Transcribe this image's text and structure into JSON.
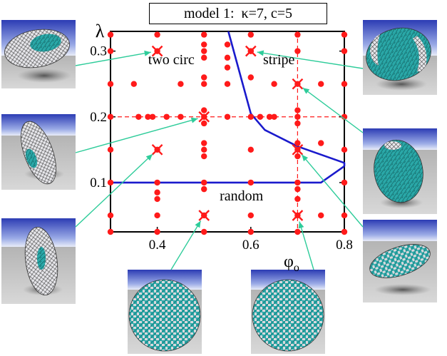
{
  "title": "model 1:  κ=7, c=5",
  "chart_data": {
    "type": "scatter",
    "title": "model 1:  κ=7, c=5",
    "xlabel": "φ",
    "xlabel_subscript": "o",
    "ylabel": "λ",
    "xlim": [
      0.3,
      0.8
    ],
    "ylim": [
      0.025,
      0.33
    ],
    "x_ticks": [
      0.4,
      0.6,
      0.8
    ],
    "x_tick_labels": [
      "0.4",
      "0.6",
      "0.8"
    ],
    "y_ticks": [
      0.1,
      0.2,
      0.3
    ],
    "y_tick_labels": [
      "0.1",
      "0.2",
      "0.3"
    ],
    "grid": false,
    "colors": {
      "points": "#ff1a1a",
      "boundary": "#1a1acc",
      "arrows": "#2ecc9a",
      "reference_lines": "#ff1a1a"
    },
    "region_labels": [
      {
        "text": "two circ",
        "x": 0.43,
        "y": 0.28
      },
      {
        "text": "stripe",
        "x": 0.66,
        "y": 0.28
      },
      {
        "text": "random",
        "x": 0.58,
        "y": 0.073
      }
    ],
    "reference_lines": [
      {
        "orientation": "vertical",
        "x": 0.7
      },
      {
        "orientation": "horizontal",
        "y": 0.2
      }
    ],
    "dots": [
      [
        0.3,
        0.325
      ],
      [
        0.4,
        0.325
      ],
      [
        0.5,
        0.325
      ],
      [
        0.6,
        0.325
      ],
      [
        0.7,
        0.325
      ],
      [
        0.8,
        0.325
      ],
      [
        0.55,
        0.31
      ],
      [
        0.55,
        0.29
      ],
      [
        0.55,
        0.275
      ],
      [
        0.3,
        0.3
      ],
      [
        0.5,
        0.3
      ],
      [
        0.6,
        0.3
      ],
      [
        0.7,
        0.3
      ],
      [
        0.8,
        0.3
      ],
      [
        0.5,
        0.31
      ],
      [
        0.5,
        0.29
      ],
      [
        0.3,
        0.25
      ],
      [
        0.35,
        0.25
      ],
      [
        0.45,
        0.25
      ],
      [
        0.5,
        0.25
      ],
      [
        0.55,
        0.25
      ],
      [
        0.65,
        0.25
      ],
      [
        0.75,
        0.25
      ],
      [
        0.8,
        0.25
      ],
      [
        0.5,
        0.26
      ],
      [
        0.6,
        0.26
      ],
      [
        0.3,
        0.2
      ],
      [
        0.36,
        0.2
      ],
      [
        0.38,
        0.2
      ],
      [
        0.39,
        0.2
      ],
      [
        0.42,
        0.2
      ],
      [
        0.45,
        0.2
      ],
      [
        0.55,
        0.2
      ],
      [
        0.6,
        0.2
      ],
      [
        0.62,
        0.2
      ],
      [
        0.64,
        0.2
      ],
      [
        0.65,
        0.2
      ],
      [
        0.7,
        0.2
      ],
      [
        0.8,
        0.2
      ],
      [
        0.5,
        0.19
      ],
      [
        0.5,
        0.21
      ],
      [
        0.7,
        0.19
      ],
      [
        0.7,
        0.21
      ],
      [
        0.5,
        0.16
      ],
      [
        0.5,
        0.15
      ],
      [
        0.5,
        0.14
      ],
      [
        0.6,
        0.15
      ],
      [
        0.7,
        0.16
      ],
      [
        0.7,
        0.14
      ],
      [
        0.75,
        0.16
      ],
      [
        0.8,
        0.15
      ],
      [
        0.3,
        0.15
      ],
      [
        0.3,
        0.1
      ],
      [
        0.4,
        0.1
      ],
      [
        0.5,
        0.1
      ],
      [
        0.6,
        0.1
      ],
      [
        0.7,
        0.1
      ],
      [
        0.8,
        0.1
      ],
      [
        0.4,
        0.085
      ],
      [
        0.4,
        0.075
      ],
      [
        0.5,
        0.09
      ],
      [
        0.7,
        0.09
      ],
      [
        0.7,
        0.075
      ],
      [
        0.3,
        0.05
      ],
      [
        0.4,
        0.05
      ],
      [
        0.6,
        0.05
      ],
      [
        0.75,
        0.05
      ],
      [
        0.8,
        0.05
      ],
      [
        0.3,
        0.025
      ],
      [
        0.4,
        0.025
      ],
      [
        0.5,
        0.025
      ],
      [
        0.6,
        0.025
      ],
      [
        0.7,
        0.025
      ],
      [
        0.8,
        0.025
      ]
    ],
    "crosses": [
      [
        0.4,
        0.3
      ],
      [
        0.6,
        0.3
      ],
      [
        0.7,
        0.25
      ],
      [
        0.5,
        0.2
      ],
      [
        0.4,
        0.15
      ],
      [
        0.7,
        0.15
      ],
      [
        0.5,
        0.05
      ],
      [
        0.7,
        0.05
      ]
    ],
    "boundaries": [
      {
        "name": "stripe-boundary",
        "points": [
          [
            0.552,
            0.33
          ],
          [
            0.6,
            0.205
          ],
          [
            0.63,
            0.18
          ],
          [
            0.7,
            0.155
          ],
          [
            0.8,
            0.13
          ],
          [
            0.8,
            0.125
          ]
        ]
      },
      {
        "name": "random-boundary",
        "points": [
          [
            0.3,
            0.1
          ],
          [
            0.75,
            0.1
          ],
          [
            0.8,
            0.125
          ]
        ]
      }
    ]
  }
}
